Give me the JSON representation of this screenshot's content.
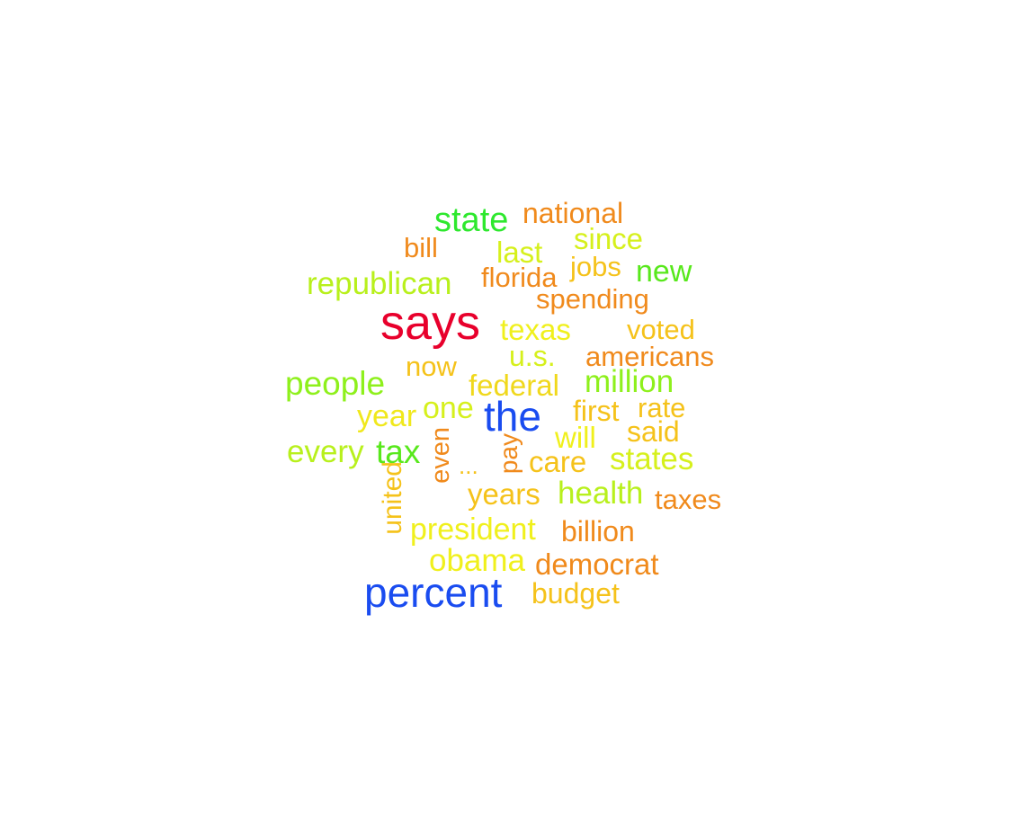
{
  "word_cloud": {
    "words": [
      {
        "text": "says",
        "color": "#e8002c"
      },
      {
        "text": "the",
        "color": "#1a4cf0"
      },
      {
        "text": "percent",
        "color": "#1a4cf0"
      },
      {
        "text": "state",
        "color": "#2ee82e"
      },
      {
        "text": "national",
        "color": "#f08a1c"
      },
      {
        "text": "bill",
        "color": "#f08a1c"
      },
      {
        "text": "last",
        "color": "#d6f01c"
      },
      {
        "text": "since",
        "color": "#d6f01c"
      },
      {
        "text": "jobs",
        "color": "#f5c21a"
      },
      {
        "text": "new",
        "color": "#58e81c"
      },
      {
        "text": "republican",
        "color": "#b8f01c"
      },
      {
        "text": "florida",
        "color": "#f08a1c"
      },
      {
        "text": "spending",
        "color": "#f08a1c"
      },
      {
        "text": "texas",
        "color": "#f0f01c"
      },
      {
        "text": "voted",
        "color": "#f5c21a"
      },
      {
        "text": "u.s.",
        "color": "#d6f01c"
      },
      {
        "text": "americans",
        "color": "#f08a1c"
      },
      {
        "text": "now",
        "color": "#f5c21a"
      },
      {
        "text": "people",
        "color": "#8ef01c"
      },
      {
        "text": "federal",
        "color": "#f0d81c"
      },
      {
        "text": "million",
        "color": "#8ef01c"
      },
      {
        "text": "year",
        "color": "#f0e81c"
      },
      {
        "text": "one",
        "color": "#d6f01c"
      },
      {
        "text": "first",
        "color": "#f5c21a"
      },
      {
        "text": "rate",
        "color": "#f5c21a"
      },
      {
        "text": "will",
        "color": "#f0f01c"
      },
      {
        "text": "said",
        "color": "#f5c21a"
      },
      {
        "text": "every",
        "color": "#b8f01c"
      },
      {
        "text": "tax",
        "color": "#58e81c"
      },
      {
        "text": "even",
        "color": "#f08a1c"
      },
      {
        "text": "...",
        "color": "#f5c21a"
      },
      {
        "text": "pay",
        "color": "#f08a1c"
      },
      {
        "text": "care",
        "color": "#f5c21a"
      },
      {
        "text": "states",
        "color": "#d6f01c"
      },
      {
        "text": "united",
        "color": "#f5c21a"
      },
      {
        "text": "years",
        "color": "#f5c21a"
      },
      {
        "text": "health",
        "color": "#b8f01c"
      },
      {
        "text": "taxes",
        "color": "#f08a1c"
      },
      {
        "text": "president",
        "color": "#f0f01c"
      },
      {
        "text": "billion",
        "color": "#f08a1c"
      },
      {
        "text": "obama",
        "color": "#f0f01c"
      },
      {
        "text": "democrat",
        "color": "#f08a1c"
      },
      {
        "text": "budget",
        "color": "#f5c21a"
      }
    ]
  }
}
